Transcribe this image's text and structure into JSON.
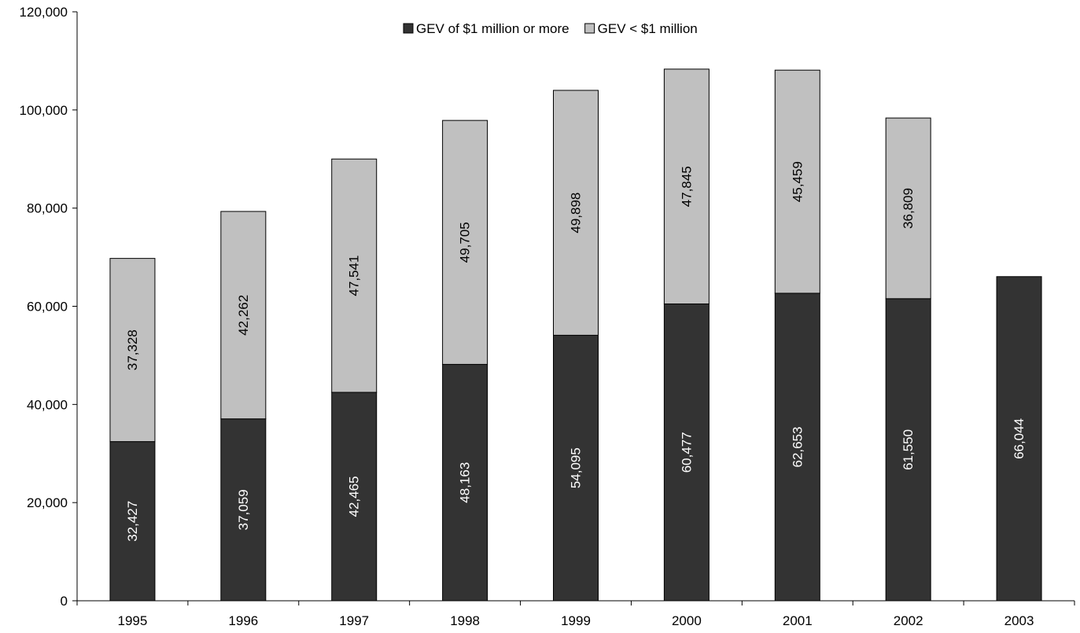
{
  "chart_data": {
    "type": "bar",
    "stacked": true,
    "categories": [
      "1995",
      "1996",
      "1997",
      "1998",
      "1999",
      "2000",
      "2001",
      "2002",
      "2003"
    ],
    "series": [
      {
        "name": "GEV of $1 million or more",
        "color": "#333333",
        "label_color": "#ffffff",
        "values": [
          32427,
          37059,
          42465,
          48163,
          54095,
          60477,
          62653,
          61550,
          66044
        ],
        "labels": [
          "32,427",
          "37,059",
          "42,465",
          "48,163",
          "54,095",
          "60,477",
          "62,653",
          "61,550",
          "66,044"
        ]
      },
      {
        "name": "GEV < $1 million",
        "color": "#c0c0c0",
        "label_color": "#000000",
        "values": [
          37328,
          42262,
          47541,
          49705,
          49898,
          47845,
          45459,
          36809,
          null
        ],
        "labels": [
          "37,328",
          "42,262",
          "47,541",
          "49,705",
          "49,898",
          "47,845",
          "45,459",
          "36,809",
          ""
        ]
      }
    ],
    "ylim": [
      0,
      120000
    ],
    "yticks": [
      0,
      20000,
      40000,
      60000,
      80000,
      100000,
      120000
    ],
    "ytick_labels": [
      "0",
      "20,000",
      "40,000",
      "60,000",
      "80,000",
      "100,000",
      "120,000"
    ],
    "title": "",
    "xlabel": "",
    "ylabel": "",
    "grid": false,
    "legend_position": "top-center"
  }
}
